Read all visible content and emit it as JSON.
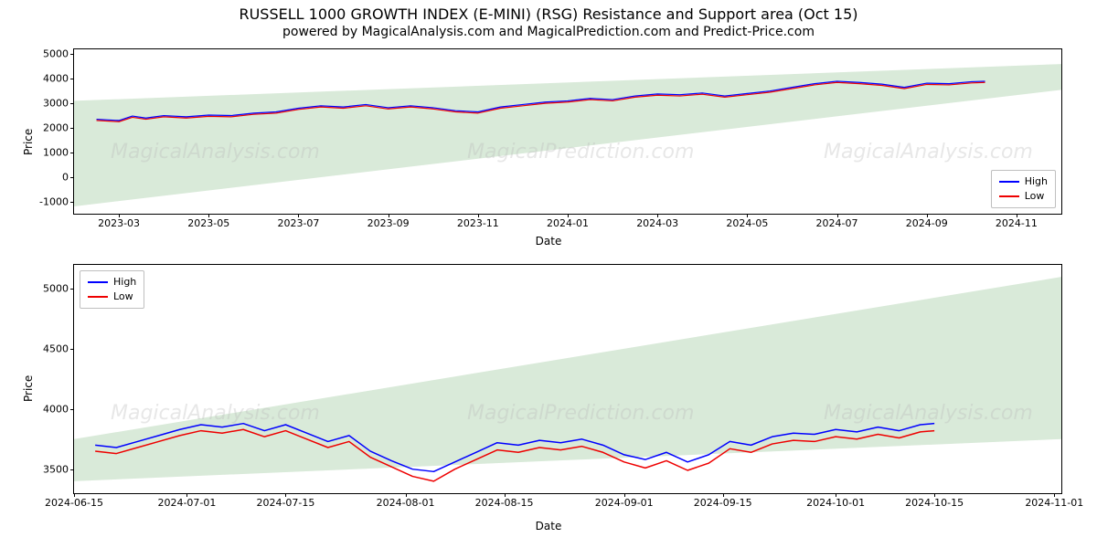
{
  "title": "RUSSELL 1000 GROWTH INDEX (E-MINI) (RSG) Resistance and Support area (Oct 15)",
  "subtitle": "powered by MagicalAnalysis.com and MagicalPrediction.com and Predict-Price.com",
  "watermark_texts": [
    "MagicalAnalysis.com",
    "MagicalPrediction.com"
  ],
  "watermark_color": "#bbbbbb",
  "legend_labels": {
    "high": "High",
    "low": "Low"
  },
  "colors": {
    "high_line": "#0000ff",
    "low_line": "#ee0000",
    "area_fill": "#d9ead9",
    "axis": "#000000",
    "background": "#ffffff"
  },
  "chart1": {
    "type": "line_with_area",
    "xlabel": "Date",
    "ylabel": "Price",
    "legend_pos": "lower-right",
    "ylim": [
      -1500,
      5200
    ],
    "yticks": [
      -1000,
      0,
      1000,
      2000,
      3000,
      4000,
      5000
    ],
    "xrange": [
      0,
      22
    ],
    "xticks": [
      {
        "pos": 1,
        "label": "2023-03"
      },
      {
        "pos": 3,
        "label": "2023-05"
      },
      {
        "pos": 5,
        "label": "2023-07"
      },
      {
        "pos": 7,
        "label": "2023-09"
      },
      {
        "pos": 9,
        "label": "2023-11"
      },
      {
        "pos": 11,
        "label": "2024-01"
      },
      {
        "pos": 13,
        "label": "2024-03"
      },
      {
        "pos": 15,
        "label": "2024-05"
      },
      {
        "pos": 17,
        "label": "2024-07"
      },
      {
        "pos": 19,
        "label": "2024-09"
      },
      {
        "pos": 21,
        "label": "2024-11"
      }
    ],
    "area_top": {
      "start_y": 3100,
      "end_y": 4600
    },
    "area_bottom": {
      "start_y": -1200,
      "end_y": 3550
    },
    "series_high": [
      [
        0.5,
        2350
      ],
      [
        1,
        2300
      ],
      [
        1.3,
        2480
      ],
      [
        1.6,
        2400
      ],
      [
        2,
        2500
      ],
      [
        2.5,
        2450
      ],
      [
        3,
        2520
      ],
      [
        3.5,
        2500
      ],
      [
        4,
        2600
      ],
      [
        4.5,
        2650
      ],
      [
        5,
        2800
      ],
      [
        5.5,
        2900
      ],
      [
        6,
        2850
      ],
      [
        6.5,
        2950
      ],
      [
        7,
        2820
      ],
      [
        7.5,
        2900
      ],
      [
        8,
        2820
      ],
      [
        8.5,
        2700
      ],
      [
        9,
        2650
      ],
      [
        9.5,
        2850
      ],
      [
        10,
        2950
      ],
      [
        10.5,
        3050
      ],
      [
        11,
        3100
      ],
      [
        11.5,
        3200
      ],
      [
        12,
        3150
      ],
      [
        12.5,
        3300
      ],
      [
        13,
        3380
      ],
      [
        13.5,
        3350
      ],
      [
        14,
        3420
      ],
      [
        14.5,
        3300
      ],
      [
        15,
        3400
      ],
      [
        15.5,
        3500
      ],
      [
        16,
        3650
      ],
      [
        16.5,
        3800
      ],
      [
        17,
        3900
      ],
      [
        17.5,
        3850
      ],
      [
        18,
        3780
      ],
      [
        18.5,
        3650
      ],
      [
        19,
        3820
      ],
      [
        19.5,
        3800
      ],
      [
        20,
        3880
      ],
      [
        20.3,
        3900
      ]
    ],
    "series_low": [
      [
        0.5,
        2300
      ],
      [
        1,
        2250
      ],
      [
        1.3,
        2430
      ],
      [
        1.6,
        2350
      ],
      [
        2,
        2450
      ],
      [
        2.5,
        2400
      ],
      [
        3,
        2470
      ],
      [
        3.5,
        2450
      ],
      [
        4,
        2550
      ],
      [
        4.5,
        2600
      ],
      [
        5,
        2750
      ],
      [
        5.5,
        2850
      ],
      [
        6,
        2800
      ],
      [
        6.5,
        2900
      ],
      [
        7,
        2770
      ],
      [
        7.5,
        2850
      ],
      [
        8,
        2770
      ],
      [
        8.5,
        2650
      ],
      [
        9,
        2600
      ],
      [
        9.5,
        2800
      ],
      [
        10,
        2900
      ],
      [
        10.5,
        3000
      ],
      [
        11,
        3050
      ],
      [
        11.5,
        3150
      ],
      [
        12,
        3100
      ],
      [
        12.5,
        3250
      ],
      [
        13,
        3330
      ],
      [
        13.5,
        3300
      ],
      [
        14,
        3370
      ],
      [
        14.5,
        3250
      ],
      [
        15,
        3350
      ],
      [
        15.5,
        3450
      ],
      [
        16,
        3600
      ],
      [
        16.5,
        3750
      ],
      [
        17,
        3850
      ],
      [
        17.5,
        3800
      ],
      [
        18,
        3730
      ],
      [
        18.5,
        3600
      ],
      [
        19,
        3770
      ],
      [
        19.5,
        3750
      ],
      [
        20,
        3830
      ],
      [
        20.3,
        3850
      ]
    ],
    "line_width": 1.2,
    "tick_fontsize": 11,
    "label_fontsize": 12
  },
  "chart2": {
    "type": "line_with_area",
    "xlabel": "Date",
    "ylabel": "Price",
    "legend_pos": "upper-left",
    "ylim": [
      3300,
      5200
    ],
    "yticks": [
      3500,
      4000,
      4500,
      5000
    ],
    "xrange": [
      0,
      140
    ],
    "xticks": [
      {
        "pos": 0,
        "label": "2024-06-15"
      },
      {
        "pos": 16,
        "label": "2024-07-01"
      },
      {
        "pos": 30,
        "label": "2024-07-15"
      },
      {
        "pos": 47,
        "label": "2024-08-01"
      },
      {
        "pos": 61,
        "label": "2024-08-15"
      },
      {
        "pos": 78,
        "label": "2024-09-01"
      },
      {
        "pos": 92,
        "label": "2024-09-15"
      },
      {
        "pos": 108,
        "label": "2024-10-01"
      },
      {
        "pos": 122,
        "label": "2024-10-15"
      },
      {
        "pos": 139,
        "label": "2024-11-01"
      }
    ],
    "area_top": {
      "start_y": 3750,
      "end_y": 5100
    },
    "area_bottom": {
      "start_y": 3400,
      "end_y": 3750
    },
    "series_high": [
      [
        3,
        3700
      ],
      [
        6,
        3680
      ],
      [
        9,
        3730
      ],
      [
        12,
        3780
      ],
      [
        15,
        3830
      ],
      [
        18,
        3870
      ],
      [
        21,
        3850
      ],
      [
        24,
        3880
      ],
      [
        27,
        3820
      ],
      [
        30,
        3870
      ],
      [
        33,
        3800
      ],
      [
        36,
        3730
      ],
      [
        39,
        3780
      ],
      [
        42,
        3650
      ],
      [
        45,
        3570
      ],
      [
        48,
        3500
      ],
      [
        51,
        3480
      ],
      [
        54,
        3560
      ],
      [
        57,
        3640
      ],
      [
        60,
        3720
      ],
      [
        63,
        3700
      ],
      [
        66,
        3740
      ],
      [
        69,
        3720
      ],
      [
        72,
        3750
      ],
      [
        75,
        3700
      ],
      [
        78,
        3620
      ],
      [
        81,
        3580
      ],
      [
        84,
        3640
      ],
      [
        87,
        3560
      ],
      [
        90,
        3620
      ],
      [
        93,
        3730
      ],
      [
        96,
        3700
      ],
      [
        99,
        3770
      ],
      [
        102,
        3800
      ],
      [
        105,
        3790
      ],
      [
        108,
        3830
      ],
      [
        111,
        3810
      ],
      [
        114,
        3850
      ],
      [
        117,
        3820
      ],
      [
        120,
        3870
      ],
      [
        122,
        3880
      ]
    ],
    "series_low": [
      [
        3,
        3650
      ],
      [
        6,
        3630
      ],
      [
        9,
        3680
      ],
      [
        12,
        3730
      ],
      [
        15,
        3780
      ],
      [
        18,
        3820
      ],
      [
        21,
        3800
      ],
      [
        24,
        3830
      ],
      [
        27,
        3770
      ],
      [
        30,
        3820
      ],
      [
        33,
        3750
      ],
      [
        36,
        3680
      ],
      [
        39,
        3730
      ],
      [
        42,
        3600
      ],
      [
        45,
        3520
      ],
      [
        48,
        3440
      ],
      [
        51,
        3400
      ],
      [
        54,
        3500
      ],
      [
        57,
        3580
      ],
      [
        60,
        3660
      ],
      [
        63,
        3640
      ],
      [
        66,
        3680
      ],
      [
        69,
        3660
      ],
      [
        72,
        3690
      ],
      [
        75,
        3640
      ],
      [
        78,
        3560
      ],
      [
        81,
        3510
      ],
      [
        84,
        3570
      ],
      [
        87,
        3490
      ],
      [
        90,
        3550
      ],
      [
        93,
        3670
      ],
      [
        96,
        3640
      ],
      [
        99,
        3710
      ],
      [
        102,
        3740
      ],
      [
        105,
        3730
      ],
      [
        108,
        3770
      ],
      [
        111,
        3750
      ],
      [
        114,
        3790
      ],
      [
        117,
        3760
      ],
      [
        120,
        3810
      ],
      [
        122,
        3820
      ]
    ],
    "line_width": 1.5,
    "tick_fontsize": 11,
    "label_fontsize": 12
  }
}
